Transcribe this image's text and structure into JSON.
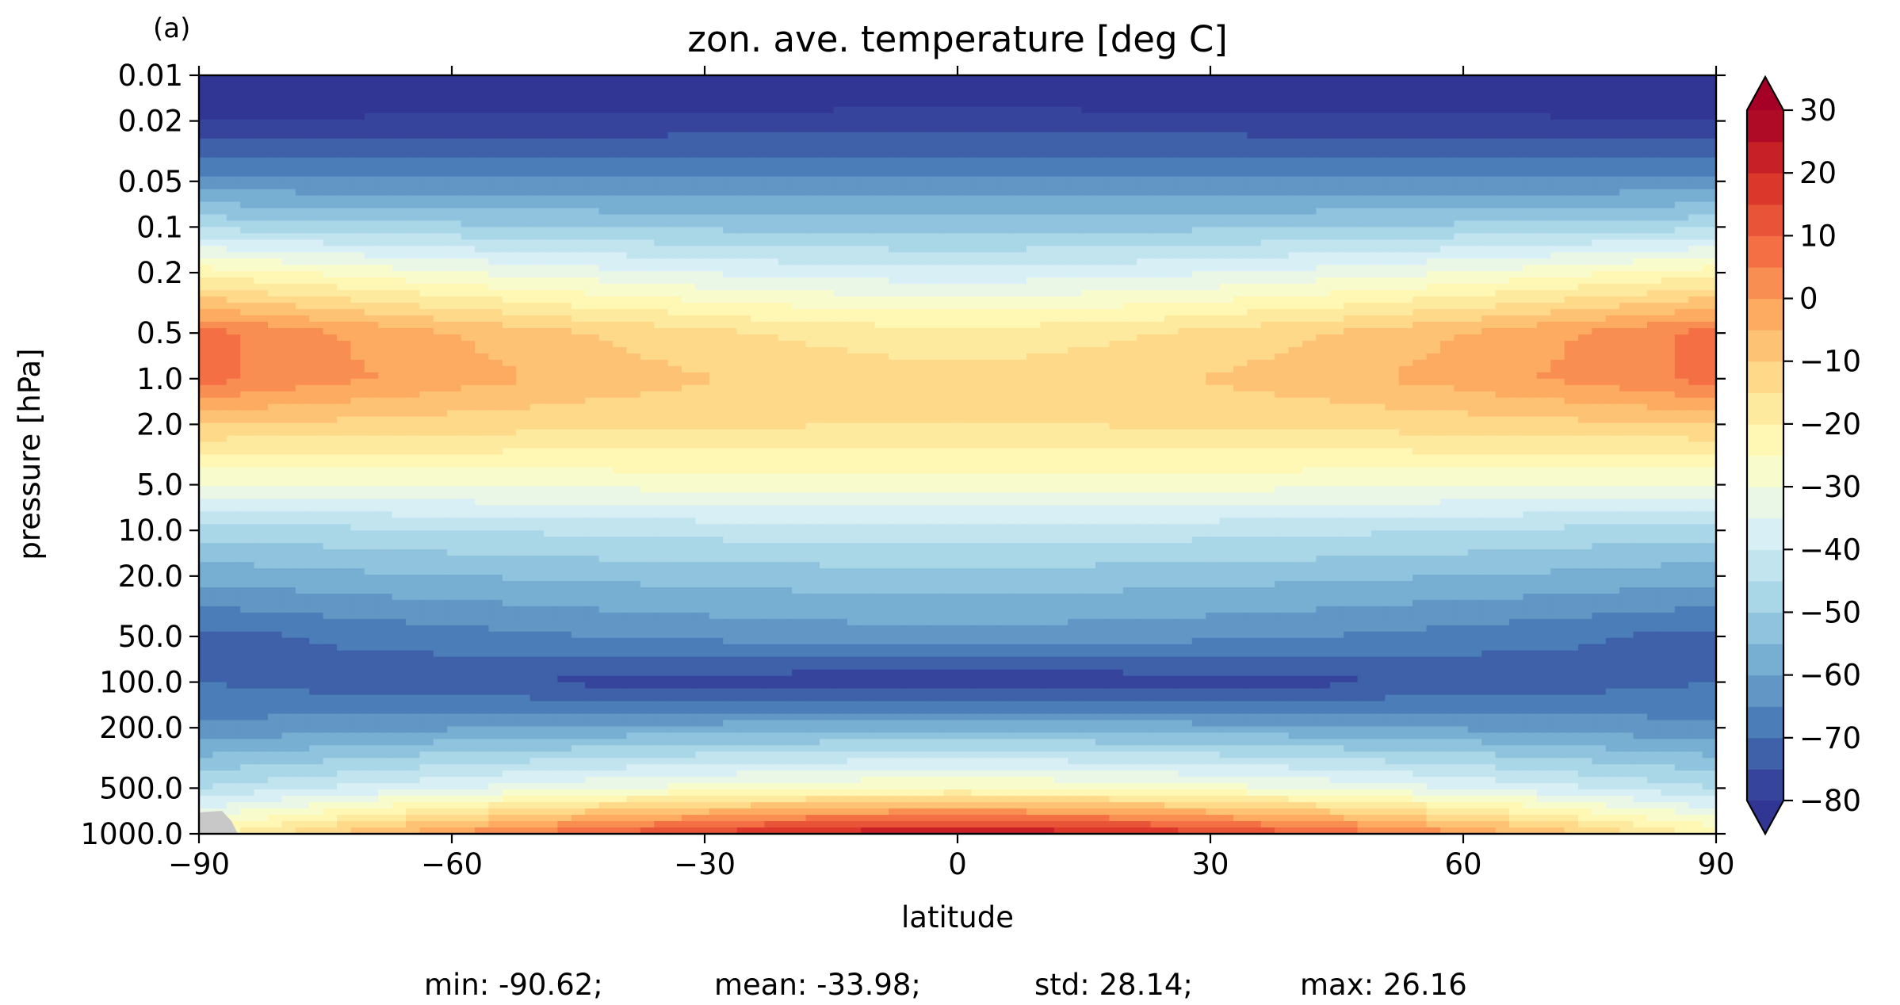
{
  "chart_data": {
    "type": "heatmap",
    "panel_label": "(a)",
    "title": "zon. ave. temperature [deg C]",
    "xlabel": "latitude",
    "ylabel": "pressure [hPa]",
    "xlim": [
      -90,
      90
    ],
    "ylim": [
      1000.0,
      0.01
    ],
    "y_scale": "log",
    "x_ticks": [
      -90,
      -60,
      -30,
      0,
      30,
      60,
      90
    ],
    "x_tick_labels": [
      "−90",
      "−60",
      "−30",
      "0",
      "30",
      "60",
      "90"
    ],
    "y_ticks": [
      0.01,
      0.02,
      0.05,
      0.1,
      0.2,
      0.5,
      1.0,
      2.0,
      5.0,
      10.0,
      20.0,
      50.0,
      100.0,
      200.0,
      500.0,
      1000.0
    ],
    "y_tick_labels": [
      "0.01",
      "0.02",
      "0.05",
      "0.1",
      "0.2",
      "0.5",
      "1.0",
      "2.0",
      "5.0",
      "10.0",
      "20.0",
      "50.0",
      "100.0",
      "200.0",
      "500.0",
      "1000.0"
    ],
    "colorbar": {
      "colormap": "RdYlBu_r",
      "vmin": -80,
      "vmax": 30,
      "level_step": 5,
      "extend": "both",
      "ticks": [
        30,
        20,
        10,
        0,
        -10,
        -20,
        -30,
        -40,
        -50,
        -60,
        -70,
        -80
      ],
      "tick_labels": [
        "30",
        "20",
        "10",
        "0",
        "−10",
        "−20",
        "−30",
        "−40",
        "−50",
        "−60",
        "−70",
        "−80"
      ]
    },
    "profile_pressure_hPa": [
      0.01,
      0.02,
      0.05,
      0.1,
      0.2,
      0.5,
      1.0,
      2.0,
      5.0,
      10.0,
      20.0,
      50.0,
      100.0,
      200.0,
      500.0,
      1000.0
    ],
    "profile_tropics_degC": [
      -86,
      -78,
      -64,
      -52,
      -38,
      -18,
      -13,
      -15,
      -28,
      -42,
      -52,
      -62,
      -79,
      -57,
      -25,
      25
    ],
    "profile_pole_degC": [
      -86,
      -80,
      -64,
      -46,
      -22,
      7,
      7,
      -10,
      -30,
      -48,
      -58,
      -72,
      -70,
      -64,
      -45,
      -22
    ],
    "stats": {
      "min": "min: -90.62;",
      "mean": "mean: -33.98;",
      "std": "std: 28.14;",
      "max": "max: 26.16"
    },
    "colors": {
      "missing": "#c8c8c8",
      "frame": "#000000"
    }
  }
}
